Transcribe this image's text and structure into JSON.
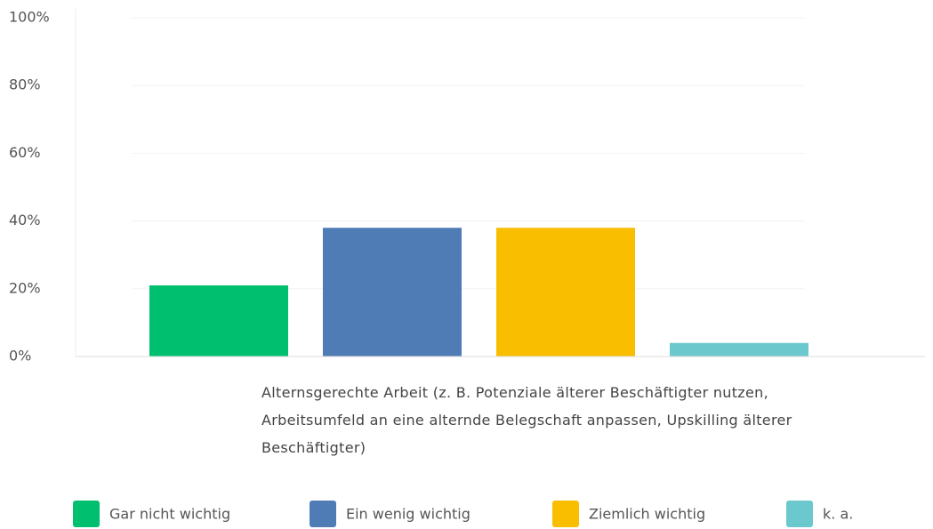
{
  "chart_data": {
    "type": "bar",
    "categories": [
      "Alternsgerechte Arbeit (z. B. Potenziale älterer Beschäftigter nutzen, Arbeitsumfeld an eine alternde Belegschaft anpassen, Upskilling älterer Beschäftigter)"
    ],
    "series": [
      {
        "name": "Gar nicht wichtig",
        "color": "#00bf6f",
        "values": [
          21
        ]
      },
      {
        "name": "Ein wenig wichtig",
        "color": "#507cb6",
        "values": [
          38
        ]
      },
      {
        "name": "Ziemlich wichtig",
        "color": "#f9be00",
        "values": [
          38
        ]
      },
      {
        "name": "k. a.",
        "color": "#6bc8cd",
        "values": [
          4
        ]
      }
    ],
    "ylim": [
      0,
      100
    ],
    "yticks": [
      {
        "value": 0,
        "label": "0%"
      },
      {
        "value": 20,
        "label": "20%"
      },
      {
        "value": 40,
        "label": "40%"
      },
      {
        "value": 60,
        "label": "60%"
      },
      {
        "value": 80,
        "label": "80%"
      },
      {
        "value": 100,
        "label": "100%"
      }
    ],
    "grid": true
  }
}
